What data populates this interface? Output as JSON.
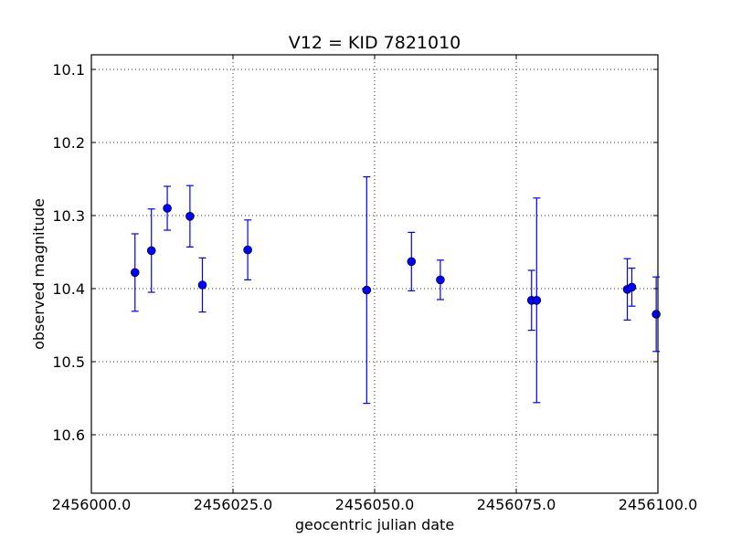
{
  "chart_data": {
    "type": "scatter",
    "title": "V12 = KID 7821010",
    "xlabel": "geocentric julian date",
    "ylabel": "observed magnitude",
    "xlim": [
      2456000.0,
      2456100.0
    ],
    "ylim": [
      10.08,
      10.68
    ],
    "y_inverted": true,
    "grid": true,
    "x_ticks": [
      2456000.0,
      2456025.0,
      2456050.0,
      2456075.0,
      2456100.0
    ],
    "x_tick_labels": [
      "2456000.0",
      "2456025.0",
      "2456050.0",
      "2456075.0",
      "2456100.0"
    ],
    "y_ticks": [
      10.1,
      10.2,
      10.3,
      10.4,
      10.5,
      10.6
    ],
    "y_tick_labels": [
      "10.1",
      "10.2",
      "10.3",
      "10.4",
      "10.5",
      "10.6"
    ],
    "marker_color": "#0000ff",
    "points": [
      {
        "x": 2456007.7,
        "y": 10.378,
        "yerr": 0.053
      },
      {
        "x": 2456010.6,
        "y": 10.348,
        "yerr": 0.057
      },
      {
        "x": 2456013.4,
        "y": 10.29,
        "yerr": 0.03
      },
      {
        "x": 2456017.4,
        "y": 10.301,
        "yerr": 0.042
      },
      {
        "x": 2456019.6,
        "y": 10.395,
        "yerr": 0.037
      },
      {
        "x": 2456027.6,
        "y": 10.347,
        "yerr": 0.041
      },
      {
        "x": 2456048.6,
        "y": 10.402,
        "yerr": 0.155
      },
      {
        "x": 2456056.5,
        "y": 10.363,
        "yerr": 0.04
      },
      {
        "x": 2456061.6,
        "y": 10.388,
        "yerr": 0.027
      },
      {
        "x": 2456077.7,
        "y": 10.416,
        "yerr": 0.041
      },
      {
        "x": 2456078.6,
        "y": 10.416,
        "yerr": 0.14
      },
      {
        "x": 2456094.6,
        "y": 10.401,
        "yerr": 0.042
      },
      {
        "x": 2456095.4,
        "y": 10.398,
        "yerr": 0.026
      },
      {
        "x": 2456099.7,
        "y": 10.435,
        "yerr": 0.051
      }
    ]
  }
}
